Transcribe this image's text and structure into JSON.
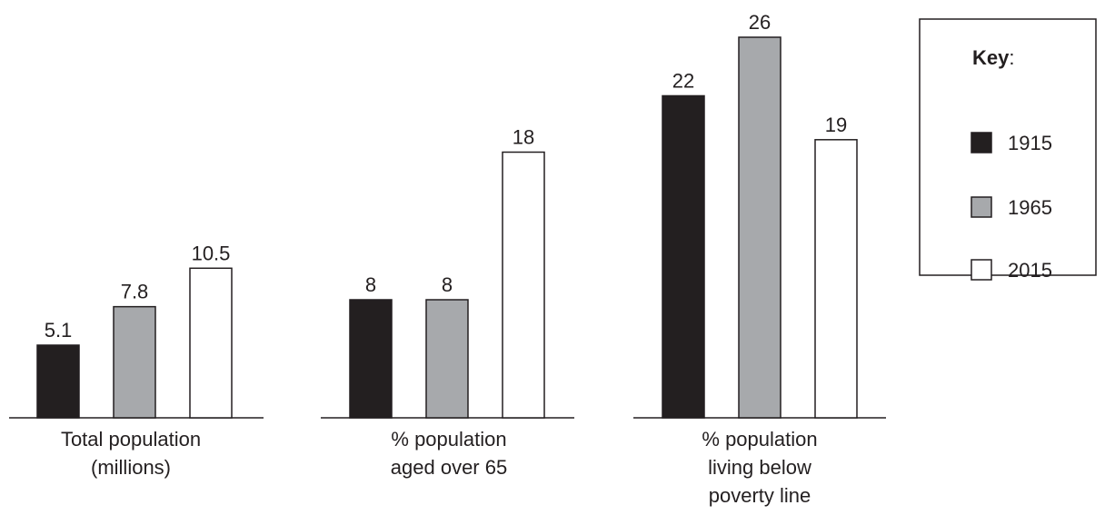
{
  "chart_data": {
    "type": "bar",
    "groups": [
      {
        "label_lines": [
          "Total population",
          "(millions)"
        ],
        "values": [
          5.1,
          7.8,
          10.5
        ],
        "value_labels": [
          "5.1",
          "7.8",
          "10.5"
        ]
      },
      {
        "label_lines": [
          "% population",
          "aged over 65"
        ],
        "values": [
          8,
          8,
          18
        ],
        "value_labels": [
          "8",
          "8",
          "18"
        ]
      },
      {
        "label_lines": [
          "% population",
          "living below",
          "poverty line"
        ],
        "values": [
          22,
          26,
          19
        ],
        "value_labels": [
          "22",
          "26",
          "19"
        ]
      }
    ],
    "series": [
      {
        "name": "1915",
        "color": "#231f20"
      },
      {
        "name": "1965",
        "color": "#a7a9ac"
      },
      {
        "name": "2015",
        "color": "#ffffff"
      }
    ],
    "legend": {
      "title_bold": "Key",
      "title_suffix": ":",
      "position": "top-right"
    },
    "note": "Each group is drawn on its own independent scale; no y-axis is shown."
  }
}
